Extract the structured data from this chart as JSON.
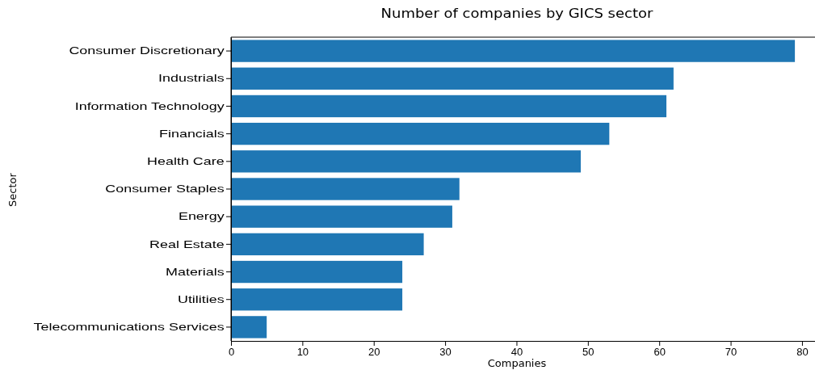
{
  "chart_data": {
    "type": "bar",
    "orientation": "horizontal",
    "title": "Number of companies by GICS sector",
    "xlabel": "Companies",
    "ylabel": "Sector",
    "categories": [
      "Consumer Discretionary",
      "Industrials",
      "Information Technology",
      "Financials",
      "Health Care",
      "Consumer Staples",
      "Energy",
      "Real Estate",
      "Materials",
      "Utilities",
      "Telecommunications Services"
    ],
    "values": [
      79,
      62,
      61,
      53,
      49,
      32,
      31,
      27,
      24,
      24,
      5
    ],
    "color": "#1f77b4",
    "xlim": [
      0,
      82.95
    ],
    "xticks": [
      0,
      10,
      20,
      30,
      40,
      50,
      60,
      70,
      80
    ],
    "grid": false
  }
}
